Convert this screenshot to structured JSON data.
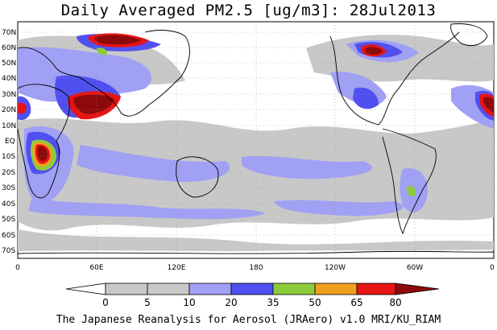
{
  "title": "Daily Averaged PM2.5 [ug/m3]: 28Jul2013",
  "footer": "The Japanese Reanalysis for Aerosol (JRAero) v1.0 MRI/KU_RIAM",
  "lat_labels": [
    "70N",
    "60N",
    "50N",
    "40N",
    "30N",
    "20N",
    "10N",
    "EQ",
    "10S",
    "20S",
    "30S",
    "40S",
    "50S",
    "60S",
    "70S"
  ],
  "lon_labels": [
    "0",
    "60E",
    "120E",
    "180",
    "120W",
    "60W",
    "0"
  ],
  "legend": {
    "ticks": [
      "0",
      "5",
      "10",
      "20",
      "35",
      "50",
      "65",
      "80"
    ],
    "colors": [
      "#ffffff",
      "#c8c8c8",
      "#a0a0f5",
      "#5050f0",
      "#8ccc3c",
      "#f0a01e",
      "#e61414",
      "#8c0a0a"
    ]
  },
  "colors": {
    "ocean": "#ffffff",
    "coast": "#000000",
    "grid": "#999999"
  }
}
